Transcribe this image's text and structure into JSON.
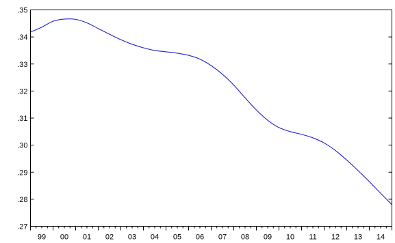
{
  "chart_data": {
    "type": "line",
    "title": "",
    "xlabel": "",
    "ylabel": "",
    "x_tick_labels": [
      "99",
      "00",
      "01",
      "02",
      "03",
      "04",
      "05",
      "06",
      "07",
      "08",
      "09",
      "10",
      "11",
      "12",
      "13",
      "14"
    ],
    "y_tick_labels": [
      ".27",
      ".28",
      ".29",
      ".30",
      ".31",
      ".32",
      ".33",
      ".34",
      ".35"
    ],
    "y_ticks": [
      0.27,
      0.28,
      0.29,
      0.3,
      0.31,
      0.32,
      0.33,
      0.34,
      0.35
    ],
    "xlim": [
      1998.5,
      2014.5
    ],
    "ylim": [
      0.27,
      0.35
    ],
    "grid": false,
    "legend": "none",
    "series": [
      {
        "color": "#1f1fd0",
        "x": [
          1998.5,
          1999.0,
          1999.5,
          2000.0,
          2000.5,
          2001.0,
          2001.5,
          2002.0,
          2002.5,
          2003.0,
          2003.5,
          2004.0,
          2004.5,
          2005.0,
          2005.5,
          2006.0,
          2006.5,
          2007.0,
          2007.5,
          2008.0,
          2008.5,
          2009.0,
          2009.5,
          2010.0,
          2010.5,
          2011.0,
          2011.5,
          2012.0,
          2012.5,
          2013.0,
          2013.5,
          2014.0,
          2014.5
        ],
        "values": [
          0.3418,
          0.3436,
          0.3458,
          0.3466,
          0.3465,
          0.3452,
          0.3431,
          0.341,
          0.339,
          0.3373,
          0.336,
          0.335,
          0.3345,
          0.334,
          0.3332,
          0.3318,
          0.3294,
          0.3262,
          0.3222,
          0.3175,
          0.313,
          0.3092,
          0.3065,
          0.305,
          0.304,
          0.3027,
          0.3008,
          0.298,
          0.2945,
          0.2906,
          0.2865,
          0.2822,
          0.278
        ]
      }
    ]
  }
}
